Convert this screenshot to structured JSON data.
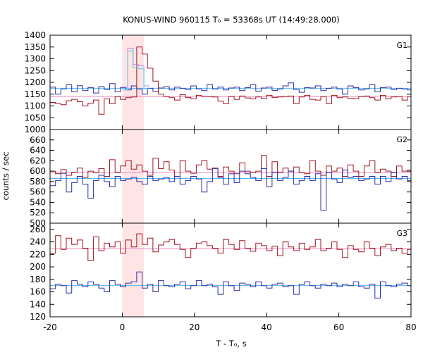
{
  "chart_data": {
    "type": "line",
    "title": "KONUS-WIND 960115 T₀ = 53368s UT (14:49:28.000)",
    "xlabel": "T - T₀, s",
    "ylabel": "counts / sec",
    "xlim": [
      -20,
      80
    ],
    "x_ticks": [
      "-20",
      "0",
      "20",
      "40",
      "60",
      "80"
    ],
    "x_tick_values": [
      -20,
      0,
      20,
      40,
      60,
      80
    ],
    "highlight_interval": {
      "x": [
        0,
        6
      ],
      "color": "#ffe4e6"
    },
    "colors": {
      "blue_series": "#2c2ca8",
      "red_series": "#a0141e",
      "blue_bg": "#55b4f0",
      "red_bg": "#ee88c0",
      "pulse_fit": "#c080e0",
      "pulse_fit_2": "#55d0e8"
    },
    "bin_width": 1.5,
    "panels": [
      {
        "label": "G1",
        "ylim": [
          1000,
          1400
        ],
        "y_ticks": [
          "1000",
          "1050",
          "1100",
          "1150",
          "1200",
          "1250",
          "1300",
          "1350",
          "1400"
        ],
        "y_tick_values": [
          1000,
          1050,
          1100,
          1150,
          1200,
          1250,
          1300,
          1350,
          1400
        ],
        "backgrounds": [
          {
            "series": "blue",
            "y": 1175
          },
          {
            "series": "red",
            "y": 1140
          }
        ],
        "series": [
          {
            "color": "blue",
            "x_start": -20,
            "values": [
              1180,
              1150,
              1172,
              1190,
              1160,
              1186,
              1165,
              1178,
              1155,
              1182,
              1170,
              1195,
              1160,
              1178,
              1168,
              1185,
              1172,
              1150,
              1175,
              1162,
              1176,
              1182,
              1168,
              1180,
              1175,
              1170,
              1185,
              1172,
              1165,
              1190,
              1172,
              1180,
              1168,
              1176,
              1180,
              1165,
              1178,
              1190,
              1163,
              1176,
              1180,
              1166,
              1172,
              1185,
              1198,
              1170,
              1158,
              1178,
              1176,
              1185,
              1165,
              1175,
              1180,
              1172,
              1150,
              1185,
              1178,
              1168,
              1172,
              1190,
              1160,
              1178,
              1180,
              1170,
              1175,
              1172,
              1168
            ]
          },
          {
            "color": "red",
            "x_start": -20,
            "values": [
              1115,
              1110,
              1105,
              1122,
              1128,
              1118,
              1100,
              1112,
              1125,
              1065,
              1130,
              1110,
              1140,
              1128,
              1135,
              1138,
              1350,
              1320,
              1260,
              1205,
              1150,
              1140,
              1135,
              1125,
              1148,
              1136,
              1130,
              1145,
              1140,
              1140,
              1138,
              1120,
              1110,
              1140,
              1128,
              1142,
              1134,
              1130,
              1138,
              1132,
              1145,
              1136,
              1138,
              1140,
              1142,
              1110,
              1138,
              1145,
              1128,
              1125,
              1140,
              1110,
              1145,
              1135,
              1138,
              1132,
              1130,
              1140,
              1142,
              1135,
              1125,
              1145,
              1130,
              1138,
              1140,
              1125,
              1140
            ]
          }
        ],
        "pulse_fit": [
          1180,
          1345,
          1275,
          1270,
          1185
        ]
      },
      {
        "label": "G2",
        "ylim": [
          500,
          680
        ],
        "y_ticks": [
          "500",
          "520",
          "540",
          "560",
          "580",
          "600",
          "620",
          "640",
          "660"
        ],
        "y_tick_values": [
          500,
          520,
          540,
          560,
          580,
          600,
          620,
          640,
          660
        ],
        "backgrounds": [
          {
            "series": "red",
            "y": 597
          },
          {
            "series": "blue",
            "y": 586
          }
        ],
        "series": [
          {
            "color": "red",
            "x_start": -20,
            "values": [
              600,
              595,
              603,
              592,
              598,
              606,
              588,
              600,
              597,
              605,
              590,
              622,
              598,
              610,
              620,
              604,
              612,
              600,
              592,
              625,
              605,
              618,
              602,
              590,
              620,
              600,
              596,
              612,
              620,
              604,
              606,
              590,
              608,
              600,
              595,
              616,
              600,
              597,
              600,
              630,
              590,
              618,
              598,
              606,
              600,
              608,
              597,
              595,
              620,
              600,
              592,
              610,
              600,
              606,
              590,
              612,
              600,
              590,
              610,
              620,
              598,
              604,
              600,
              590,
              610,
              600,
              602
            ]
          },
          {
            "color": "blue",
            "x_start": -20,
            "values": [
              572,
              582,
              596,
              560,
              578,
              590,
              575,
              548,
              582,
              592,
              580,
              570,
              590,
              582,
              585,
              588,
              580,
              575,
              590,
              582,
              585,
              588,
              580,
              590,
              575,
              582,
              590,
              585,
              560,
              580,
              605,
              588,
              575,
              595,
              578,
              600,
              595,
              588,
              582,
              605,
              570,
              598,
              582,
              588,
              600,
              575,
              582,
              590,
              582,
              595,
              525,
              598,
              585,
              578,
              602,
              588,
              590,
              582,
              585,
              590,
              575,
              590,
              580,
              598,
              585,
              590,
              582
            ]
          }
        ]
      },
      {
        "label": "G3",
        "ylim": [
          120,
          270
        ],
        "y_ticks": [
          "120",
          "140",
          "160",
          "180",
          "200",
          "220",
          "240",
          "260"
        ],
        "y_tick_values": [
          120,
          140,
          160,
          180,
          200,
          220,
          240,
          260
        ],
        "backgrounds": [
          {
            "series": "red",
            "y": 229
          },
          {
            "series": "blue",
            "y": 170
          }
        ],
        "series": [
          {
            "color": "red",
            "x_start": -20,
            "values": [
              222,
              250,
              228,
              246,
              236,
              243,
              230,
              210,
              248,
              226,
              238,
              232,
              240,
              222,
              243,
              232,
              253,
              236,
              246,
              224,
              235,
              240,
              244,
              236,
              228,
              215,
              230,
              238,
              240,
              234,
              230,
              222,
              244,
              236,
              228,
              242,
              230,
              225,
              238,
              234,
              226,
              233,
              218,
              240,
              232,
              226,
              238,
              228,
              232,
              244,
              226,
              230,
              240,
              228,
              215,
              234,
              228,
              224,
              240,
              230,
              218,
              232,
              236,
              226,
              230,
              222,
              228
            ]
          },
          {
            "color": "blue",
            "x_start": -20,
            "values": [
              165,
              172,
              170,
              158,
              178,
              172,
              168,
              176,
              172,
              166,
              160,
              178,
              172,
              168,
              174,
              176,
              192,
              166,
              172,
              160,
              178,
              170,
              168,
              172,
              176,
              165,
              170,
              178,
              170,
              172,
              168,
              156,
              176,
              170,
              162,
              174,
              172,
              168,
              176,
              170,
              166,
              172,
              174,
              168,
              170,
              156,
              172,
              176,
              170,
              166,
              172,
              170,
              174,
              168,
              172,
              170,
              176,
              168,
              166,
              172,
              150,
              176,
              170,
              168,
              172,
              174,
              170
            ]
          }
        ]
      }
    ]
  }
}
